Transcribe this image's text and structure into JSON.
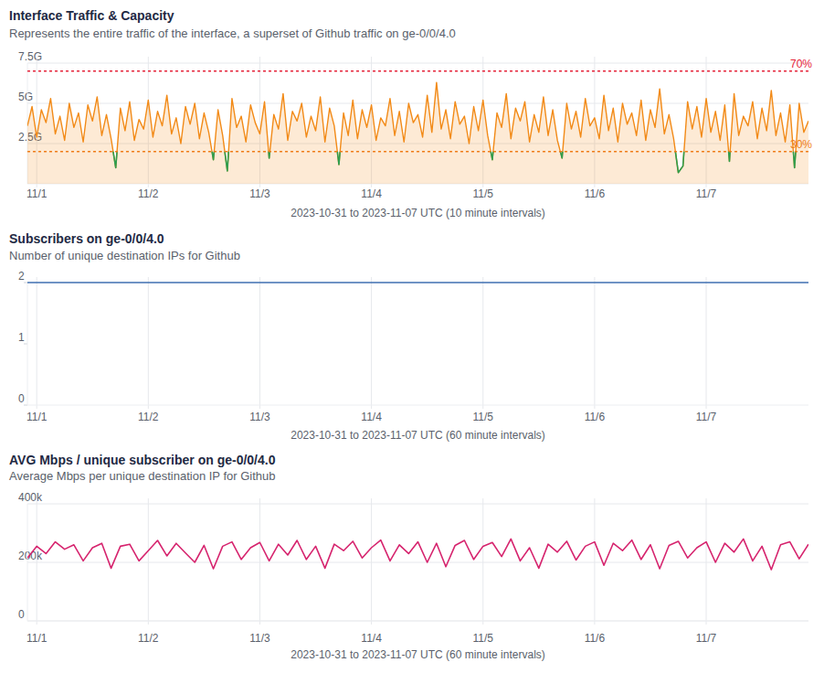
{
  "chart_data": [
    {
      "type": "area",
      "title": "Interface Traffic & Capacity",
      "subtitle": "Represents the entire traffic of the interface, a superset of Github traffic on ge-0/0/4.0",
      "x_label": "2023-10-31 to 2023-11-07 UTC (10 minute intervals)",
      "x": [
        -2,
        -1,
        0,
        1,
        2,
        3,
        4,
        5,
        6,
        7,
        8,
        9,
        10,
        11,
        12,
        13,
        14,
        15,
        16,
        17,
        18,
        19,
        20,
        21,
        22,
        23,
        24,
        25,
        26,
        27,
        28,
        29,
        30,
        31,
        32,
        33,
        34,
        35,
        36,
        37,
        38,
        39,
        40,
        41,
        42,
        43,
        44,
        45,
        46,
        47,
        48,
        49,
        50,
        51,
        52,
        53,
        54,
        55,
        56,
        57,
        58,
        59,
        60,
        61,
        62,
        63,
        64,
        65,
        66,
        67,
        68,
        69,
        70,
        71,
        72,
        73,
        74,
        75,
        76,
        77,
        78,
        79,
        80,
        81,
        82,
        83,
        84,
        85,
        86,
        87,
        88,
        89,
        90,
        91,
        92,
        93,
        94,
        95,
        96,
        97,
        98,
        99,
        100,
        101,
        102,
        103,
        104,
        105,
        106,
        107,
        108,
        109,
        110,
        111,
        112,
        113,
        114,
        115,
        116,
        117,
        118,
        119,
        120,
        121,
        122,
        123,
        124,
        125,
        126,
        127,
        128,
        129,
        130,
        131,
        132,
        133,
        134,
        135,
        136,
        137,
        138,
        139,
        140,
        141,
        142,
        143,
        144,
        145,
        146,
        147,
        148,
        149,
        150,
        151,
        152,
        153,
        154,
        155,
        156,
        157,
        158,
        159,
        160,
        161,
        162,
        163,
        164,
        165,
        166
      ],
      "values": [
        3.6,
        4.8,
        2.9,
        4.6,
        3.8,
        5.3,
        3.1,
        4.2,
        2.7,
        5.0,
        3.5,
        4.4,
        2.6,
        4.9,
        3.9,
        5.4,
        3.0,
        4.3,
        2.8,
        1.0,
        4.7,
        3.3,
        5.1,
        2.7,
        4.0,
        3.4,
        5.2,
        2.9,
        4.5,
        3.6,
        5.5,
        3.1,
        4.1,
        2.5,
        4.8,
        3.7,
        5.0,
        2.8,
        4.4,
        3.2,
        1.5,
        4.6,
        3.0,
        0.8,
        5.3,
        3.5,
        4.2,
        2.6,
        4.9,
        3.8,
        3.1,
        5.1,
        1.6,
        4.3,
        3.4,
        5.6,
        2.7,
        4.5,
        3.9,
        5.0,
        2.9,
        4.2,
        3.3,
        5.4,
        2.6,
        4.7,
        3.6,
        1.2,
        4.4,
        3.0,
        5.2,
        2.8,
        4.6,
        3.5,
        4.9,
        2.7,
        4.1,
        3.6,
        5.3,
        3.0,
        4.5,
        2.6,
        5.0,
        3.8,
        4.3,
        2.9,
        5.5,
        3.2,
        6.3,
        3.4,
        4.6,
        2.8,
        5.1,
        3.7,
        4.2,
        2.5,
        4.8,
        3.3,
        5.2,
        3.0,
        1.5,
        4.4,
        3.5,
        5.6,
        2.8,
        4.7,
        3.9,
        5.1,
        2.6,
        4.3,
        3.2,
        5.4,
        3.0,
        4.6,
        2.7,
        1.6,
        5.0,
        3.4,
        4.5,
        2.9,
        5.3,
        3.6,
        4.1,
        2.8,
        5.5,
        3.3,
        4.7,
        2.6,
        5.0,
        3.7,
        4.4,
        3.0,
        5.2,
        2.7,
        4.6,
        3.5,
        5.9,
        3.1,
        4.3,
        2.8,
        0.7,
        1.1,
        5.1,
        3.4,
        4.8,
        2.9,
        5.3,
        3.2,
        4.5,
        2.7,
        4.9,
        1.4,
        5.6,
        3.0,
        4.2,
        3.6,
        5.1,
        2.8,
        4.7,
        3.3,
        5.8,
        3.0,
        4.4,
        2.6,
        4.9,
        1.0,
        5.0,
        3.2,
        3.9
      ],
      "color": "#f28a17",
      "xlim": [
        -2,
        166
      ],
      "xticks": [
        {
          "value": 0,
          "label": "11/1"
        },
        {
          "value": 24,
          "label": "11/2"
        },
        {
          "value": 48,
          "label": "11/3"
        },
        {
          "value": 72,
          "label": "11/4"
        },
        {
          "value": 96,
          "label": "11/5"
        },
        {
          "value": 120,
          "label": "11/6"
        },
        {
          "value": 144,
          "label": "11/7"
        }
      ],
      "ylim": [
        0,
        7.5
      ],
      "yticks": [
        {
          "value": 2.5,
          "label": "2.5G"
        },
        {
          "value": 5,
          "label": "5G"
        },
        {
          "value": 7.5,
          "label": "7.5G"
        }
      ],
      "annotations": [
        {
          "value": 7,
          "label": "70%",
          "color": "#e5243b"
        },
        {
          "value": 2,
          "label": "30%",
          "color": "#ef7d1a"
        }
      ],
      "grid": true
    },
    {
      "type": "line",
      "title": "Subscribers on ge-0/0/4.0",
      "subtitle": "Number of unique destination IPs for Github",
      "x_label": "2023-10-31 to 2023-11-07 UTC (60 minute intervals)",
      "x": [
        -2,
        0,
        24,
        48,
        72,
        96,
        120,
        144,
        166
      ],
      "values": [
        2,
        2,
        2,
        2,
        2,
        2,
        2,
        2,
        2
      ],
      "color": "#3e6fb0",
      "xlim": [
        -2,
        166
      ],
      "xticks": [
        {
          "value": 0,
          "label": "11/1"
        },
        {
          "value": 24,
          "label": "11/2"
        },
        {
          "value": 48,
          "label": "11/3"
        },
        {
          "value": 72,
          "label": "11/4"
        },
        {
          "value": 96,
          "label": "11/5"
        },
        {
          "value": 120,
          "label": "11/6"
        },
        {
          "value": 144,
          "label": "11/7"
        }
      ],
      "ylim": [
        0,
        2
      ],
      "yticks": [
        0,
        1,
        2
      ],
      "grid": "x"
    },
    {
      "type": "line",
      "title": "AVG Mbps / unique subscriber on ge-0/0/4.0",
      "subtitle": "Average Mbps per unique destination IP for Github",
      "x_label": "2023-10-31 to 2023-11-07 UTC (60 minute intervals)",
      "x": [
        -2,
        0,
        2,
        4,
        6,
        8,
        10,
        12,
        14,
        16,
        18,
        20,
        22,
        24,
        26,
        28,
        30,
        32,
        34,
        36,
        38,
        40,
        42,
        44,
        46,
        48,
        50,
        52,
        54,
        56,
        58,
        60,
        62,
        64,
        66,
        68,
        70,
        72,
        74,
        76,
        78,
        80,
        82,
        84,
        86,
        88,
        90,
        92,
        94,
        96,
        98,
        100,
        102,
        104,
        106,
        108,
        110,
        112,
        114,
        116,
        118,
        120,
        122,
        124,
        126,
        128,
        130,
        132,
        134,
        136,
        138,
        140,
        142,
        144,
        146,
        148,
        150,
        152,
        154,
        156,
        158,
        160,
        162,
        164,
        166
      ],
      "values": [
        215000,
        255000,
        230000,
        270000,
        245000,
        260000,
        205000,
        250000,
        265000,
        180000,
        255000,
        262000,
        205000,
        240000,
        275000,
        222000,
        265000,
        232000,
        200000,
        258000,
        178000,
        255000,
        270000,
        210000,
        250000,
        268000,
        205000,
        262000,
        225000,
        275000,
        210000,
        255000,
        180000,
        262000,
        240000,
        272000,
        215000,
        250000,
        276000,
        205000,
        260000,
        230000,
        270000,
        200000,
        265000,
        185000,
        258000,
        275000,
        210000,
        255000,
        268000,
        220000,
        280000,
        205000,
        250000,
        180000,
        262000,
        235000,
        272000,
        208000,
        255000,
        270000,
        190000,
        265000,
        240000,
        276000,
        210000,
        260000,
        178000,
        258000,
        272000,
        215000,
        250000,
        270000,
        200000,
        265000,
        235000,
        280000,
        205000,
        255000,
        175000,
        260000,
        270000,
        212000,
        262000
      ],
      "color": "#d6246e",
      "xlim": [
        -2,
        166
      ],
      "xticks": [
        {
          "value": 0,
          "label": "11/1"
        },
        {
          "value": 24,
          "label": "11/2"
        },
        {
          "value": 48,
          "label": "11/3"
        },
        {
          "value": 72,
          "label": "11/4"
        },
        {
          "value": 96,
          "label": "11/5"
        },
        {
          "value": 120,
          "label": "11/6"
        },
        {
          "value": 144,
          "label": "11/7"
        }
      ],
      "ylim": [
        0,
        400000
      ],
      "yticks": [
        0,
        {
          "value": 200000,
          "label": "200k"
        },
        {
          "value": 400000,
          "label": "400k"
        }
      ],
      "grid": true
    }
  ]
}
